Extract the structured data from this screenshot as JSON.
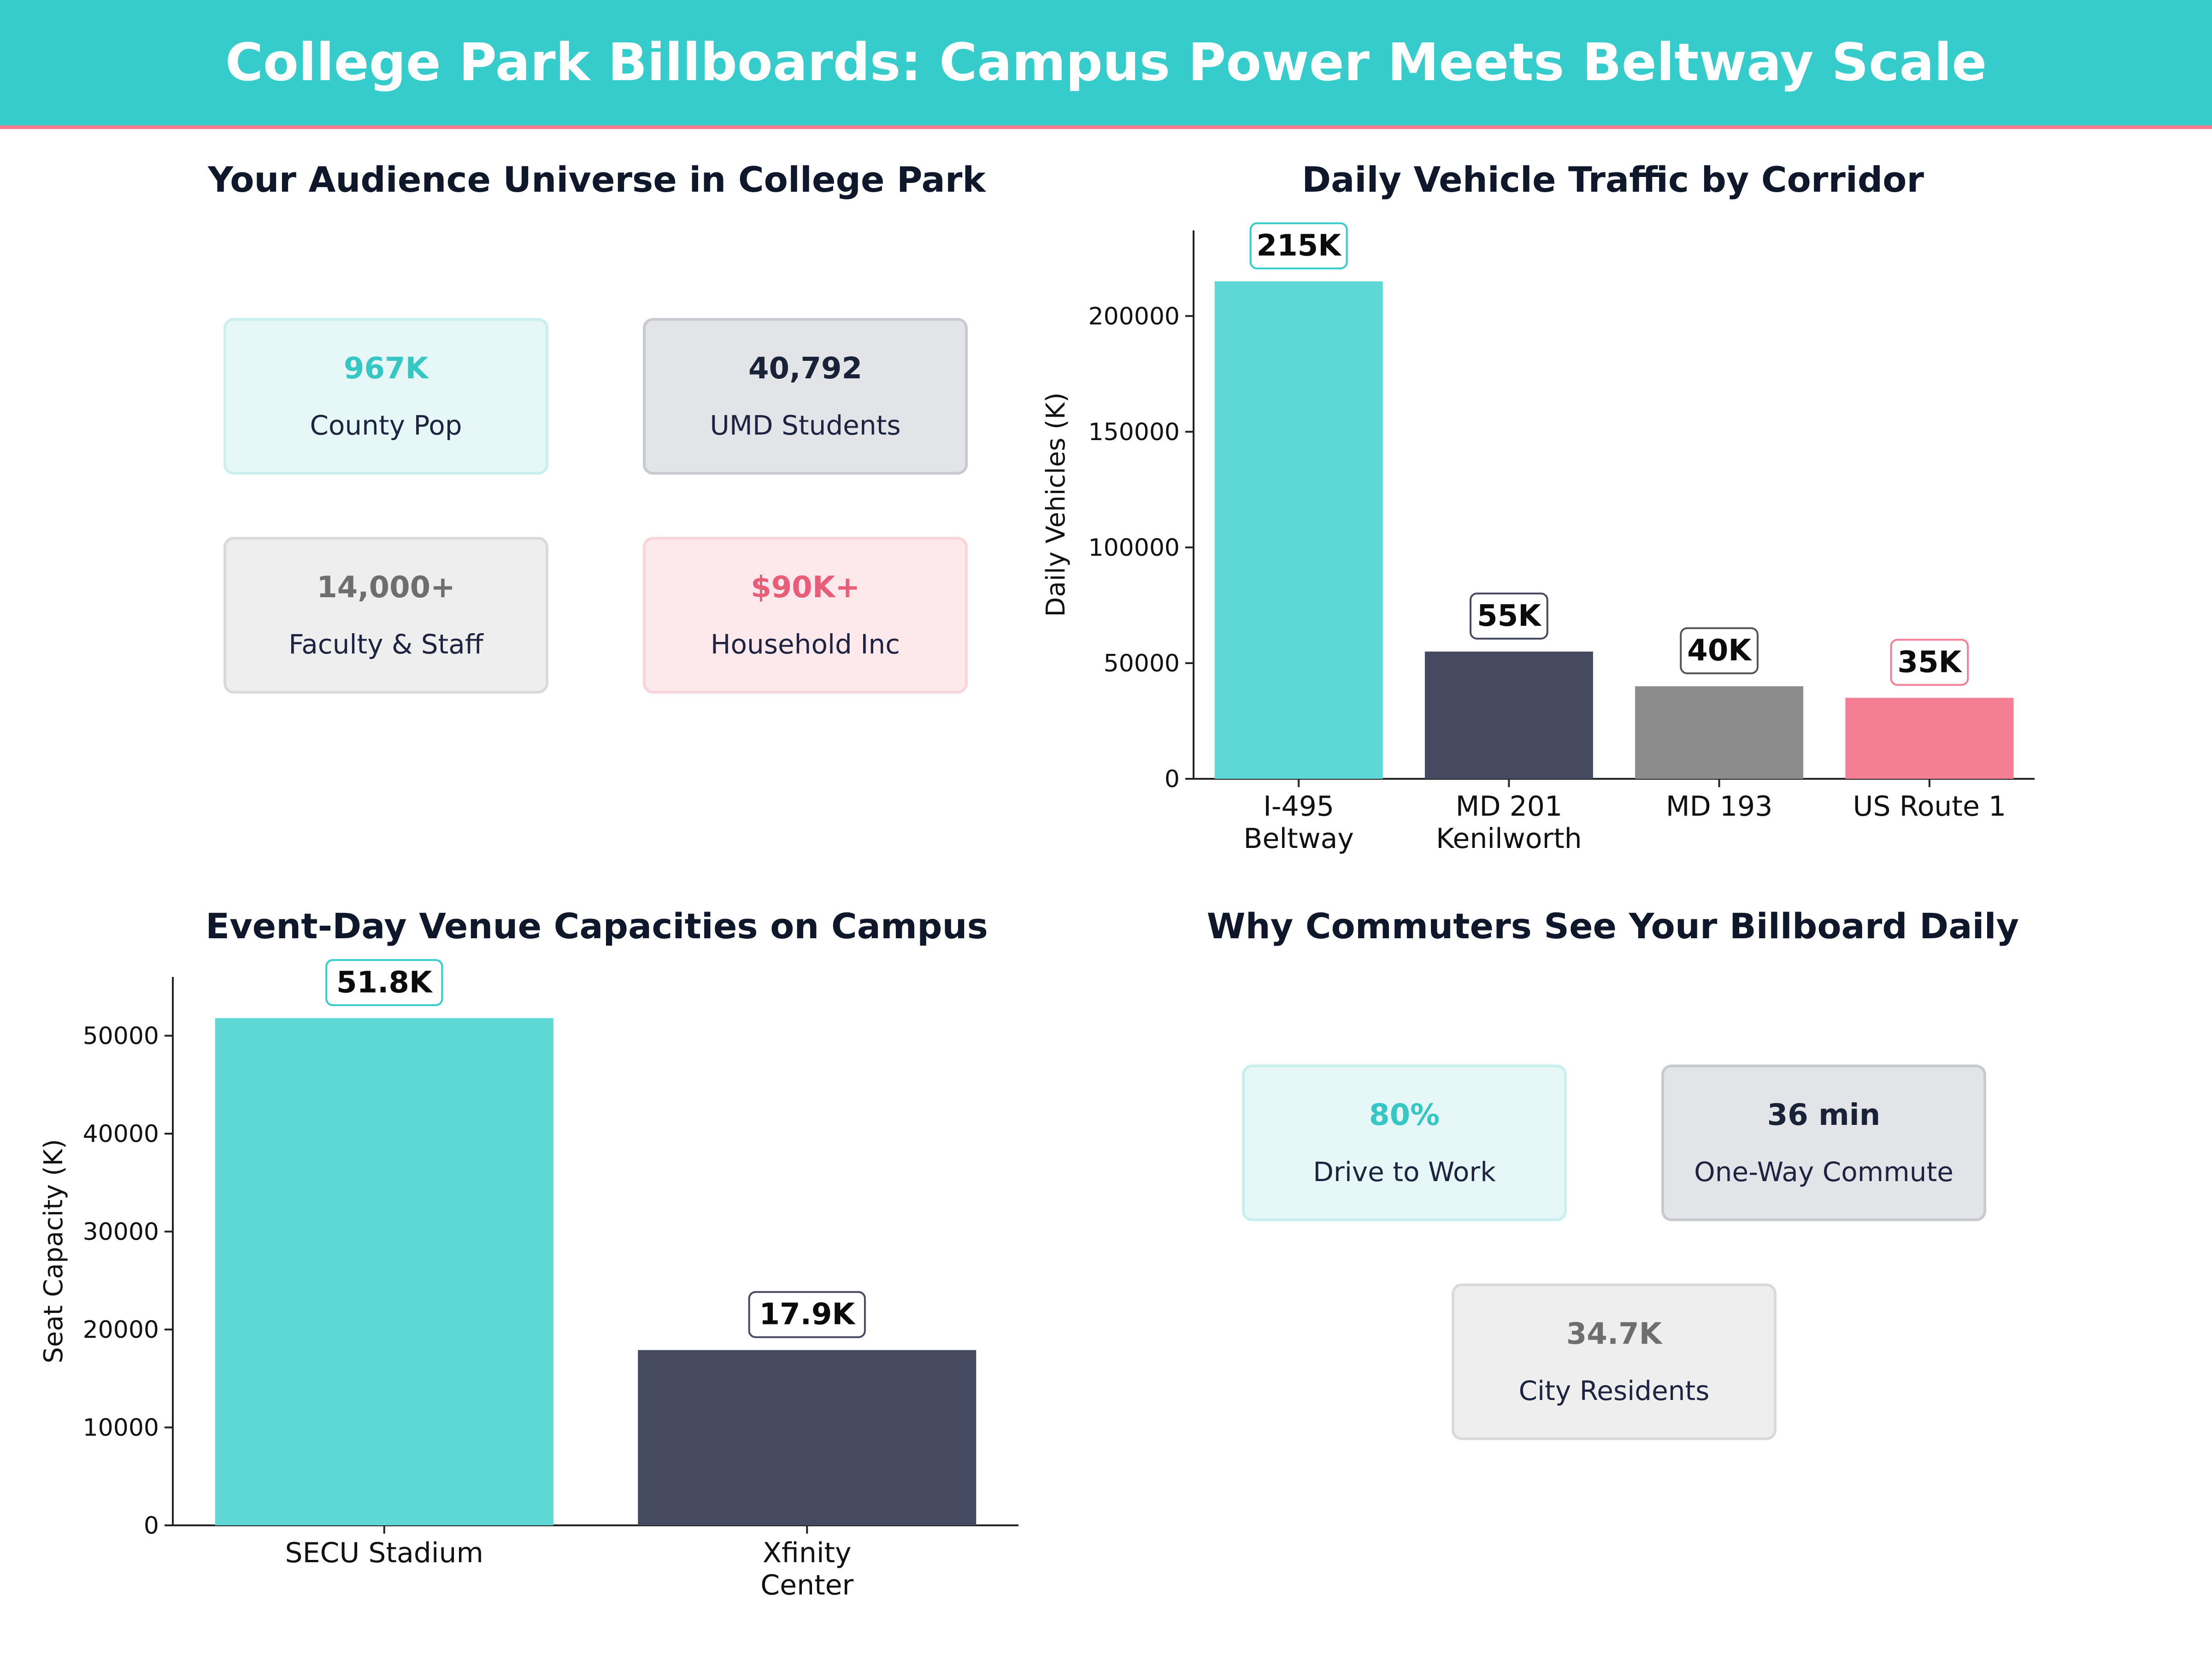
{
  "header": {
    "title": "College Park Billboards: Campus Power Meets Beltway Scale"
  },
  "colors": {
    "banner": "#36cccc",
    "accent_line": "#f07c8c",
    "teal": "#5ed8d5",
    "navy": "#464a60",
    "gray": "#8c8c8c",
    "pink": "#f47f95"
  },
  "audience": {
    "title": "Your Audience Universe in College Park",
    "cards": [
      {
        "value": "967K",
        "label": "County Pop",
        "theme": "teal"
      },
      {
        "value": "40,792",
        "label": "UMD Students",
        "theme": "navy"
      },
      {
        "value": "14,000+",
        "label": "Faculty & Staff",
        "theme": "gray"
      },
      {
        "value": "$90K+",
        "label": "Household Inc",
        "theme": "pink"
      }
    ]
  },
  "commute": {
    "title": "Why Commuters See Your Billboard Daily",
    "cards": [
      {
        "value": "80%",
        "label": "Drive to Work",
        "theme": "teal"
      },
      {
        "value": "36 min",
        "label": "One-Way Commute",
        "theme": "navy"
      },
      {
        "value": "34.7K",
        "label": "City Residents",
        "theme": "gray"
      }
    ]
  },
  "chart_data": [
    {
      "type": "bar",
      "title": "Daily Vehicle Traffic by Corridor",
      "ylabel": "Daily Vehicles (K)",
      "xlabel": "",
      "categories": [
        [
          "I-495",
          "Beltway"
        ],
        [
          "MD 201",
          "Kenilworth"
        ],
        [
          "MD 193"
        ],
        [
          "US Route 1"
        ]
      ],
      "values": [
        215000,
        55000,
        40000,
        35000
      ],
      "data_labels": [
        "215K",
        "55K",
        "40K",
        "35K"
      ],
      "colors": [
        "#5ed8d5",
        "#464a60",
        "#8c8c8c",
        "#f47f95"
      ],
      "yticks": [
        0,
        50000,
        100000,
        150000,
        200000
      ],
      "ylim": [
        0,
        237000
      ],
      "grid": false
    },
    {
      "type": "bar",
      "title": "Event-Day Venue Capacities on Campus",
      "ylabel": "Seat Capacity (K)",
      "xlabel": "",
      "categories": [
        [
          "SECU Stadium"
        ],
        [
          "Xfinity",
          "Center"
        ]
      ],
      "values": [
        51800,
        17900
      ],
      "data_labels": [
        "51.8K",
        "17.9K"
      ],
      "colors": [
        "#5ed8d5",
        "#464a60"
      ],
      "yticks": [
        0,
        10000,
        20000,
        30000,
        40000,
        50000
      ],
      "ylim": [
        0,
        56000
      ],
      "grid": false
    }
  ]
}
